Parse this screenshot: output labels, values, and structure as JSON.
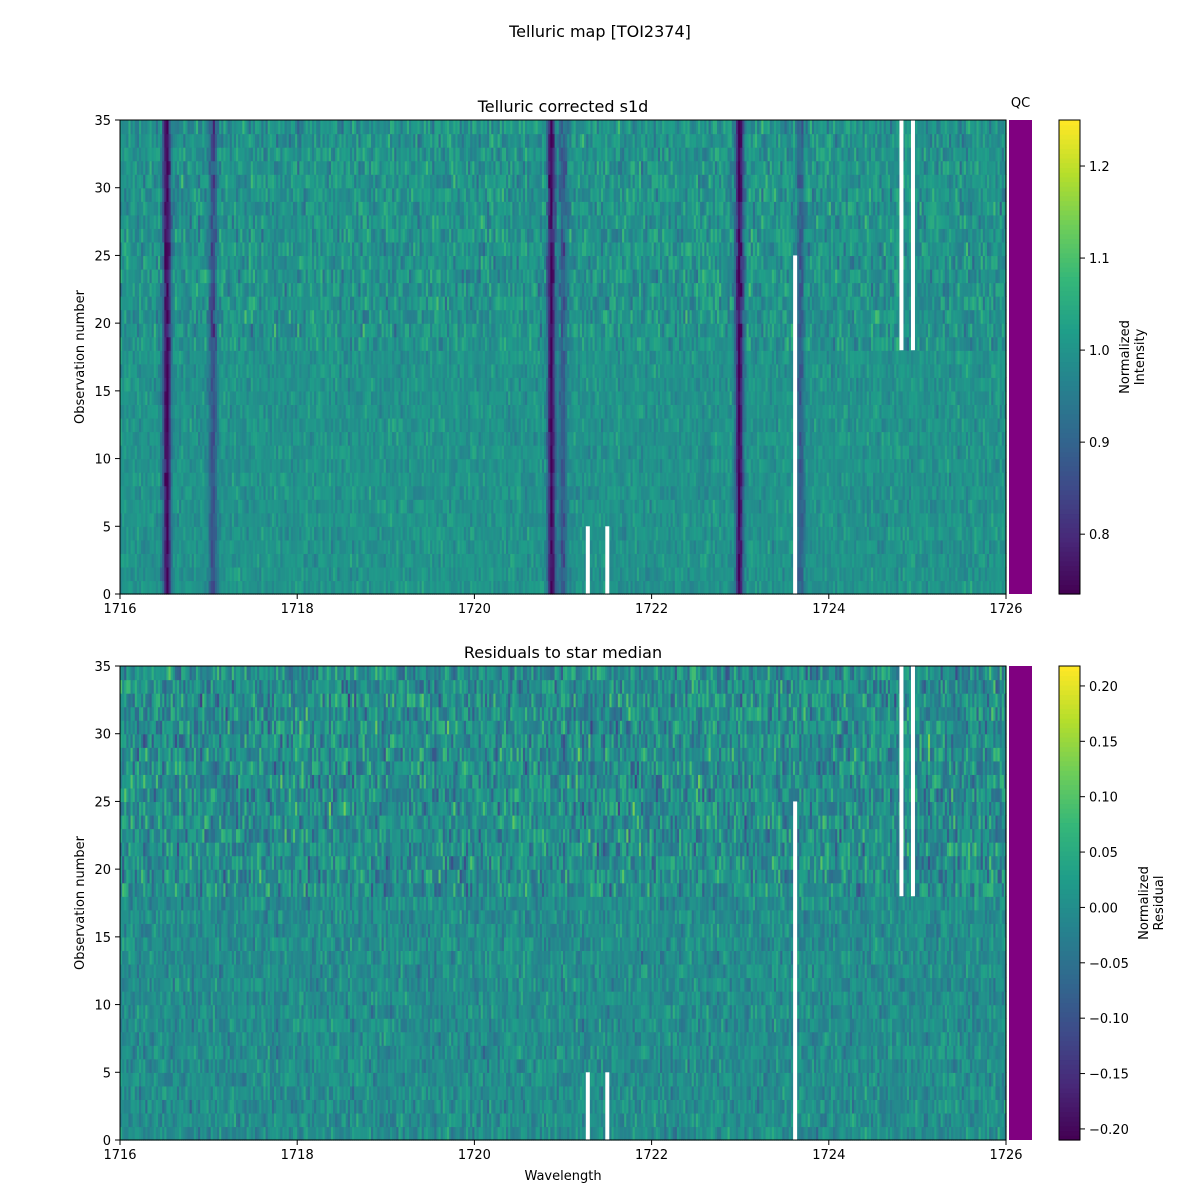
{
  "figure": {
    "suptitle": "Telluric map [TOI2374]"
  },
  "chart_data": [
    {
      "type": "heatmap",
      "title": "Telluric corrected s1d",
      "xlabel": "",
      "ylabel": "Observation number",
      "xlim": [
        1716,
        1726
      ],
      "ylim": [
        0,
        35
      ],
      "x_ticks": [
        "1716",
        "1718",
        "1720",
        "1722",
        "1724",
        "1726"
      ],
      "y_ticks": [
        "0",
        "5",
        "10",
        "15",
        "20",
        "25",
        "30",
        "35"
      ],
      "colorbar": {
        "label_lines": [
          "Normalized",
          "Intensity"
        ],
        "range": [
          0.735,
          1.25
        ],
        "ticks": [
          "0.8",
          "0.9",
          "1.0",
          "1.1",
          "1.2"
        ],
        "tick_values": [
          0.8,
          0.9,
          1.0,
          1.1,
          1.2
        ]
      },
      "qc_label": "QC",
      "qc_color": "#800080",
      "absorption_lines": [
        {
          "center": 1716.53,
          "depth": 0.27
        },
        {
          "center": 1717.05,
          "depth": 0.14
        },
        {
          "center": 1720.87,
          "depth": 0.26
        },
        {
          "center": 1721.0,
          "depth": 0.12
        },
        {
          "center": 1722.99,
          "depth": 0.27
        },
        {
          "center": 1723.68,
          "depth": 0.12
        }
      ],
      "gaps": [
        {
          "x": 1721.28,
          "rows": [
            0,
            5
          ]
        },
        {
          "x": 1721.5,
          "rows": [
            0,
            5
          ]
        },
        {
          "x": 1723.62,
          "rows": [
            0,
            25
          ]
        },
        {
          "x": 1724.82,
          "rows": [
            18,
            35
          ]
        },
        {
          "x": 1724.95,
          "rows": [
            18,
            35
          ]
        }
      ]
    },
    {
      "type": "heatmap",
      "title": "Residuals to star median",
      "xlabel": "Wavelength",
      "ylabel": "Observation number",
      "xlim": [
        1716,
        1726
      ],
      "ylim": [
        0,
        35
      ],
      "x_ticks": [
        "1716",
        "1718",
        "1720",
        "1722",
        "1724",
        "1726"
      ],
      "y_ticks": [
        "0",
        "5",
        "10",
        "15",
        "20",
        "25",
        "30",
        "35"
      ],
      "colorbar": {
        "label_lines": [
          "Normalized",
          "Residual"
        ],
        "range": [
          -0.21,
          0.218
        ],
        "ticks": [
          "0.20",
          "0.15",
          "0.10",
          "0.05",
          "0.00",
          "−0.05",
          "−0.10",
          "−0.15",
          "−0.20"
        ],
        "tick_values": [
          0.2,
          0.15,
          0.1,
          0.05,
          0.0,
          -0.05,
          -0.1,
          -0.15,
          -0.2
        ]
      },
      "qc_color": "#800080",
      "gaps": [
        {
          "x": 1721.28,
          "rows": [
            0,
            5
          ]
        },
        {
          "x": 1721.5,
          "rows": [
            0,
            5
          ]
        },
        {
          "x": 1723.62,
          "rows": [
            0,
            25
          ]
        },
        {
          "x": 1724.82,
          "rows": [
            18,
            35
          ]
        },
        {
          "x": 1724.95,
          "rows": [
            18,
            35
          ]
        }
      ]
    }
  ]
}
